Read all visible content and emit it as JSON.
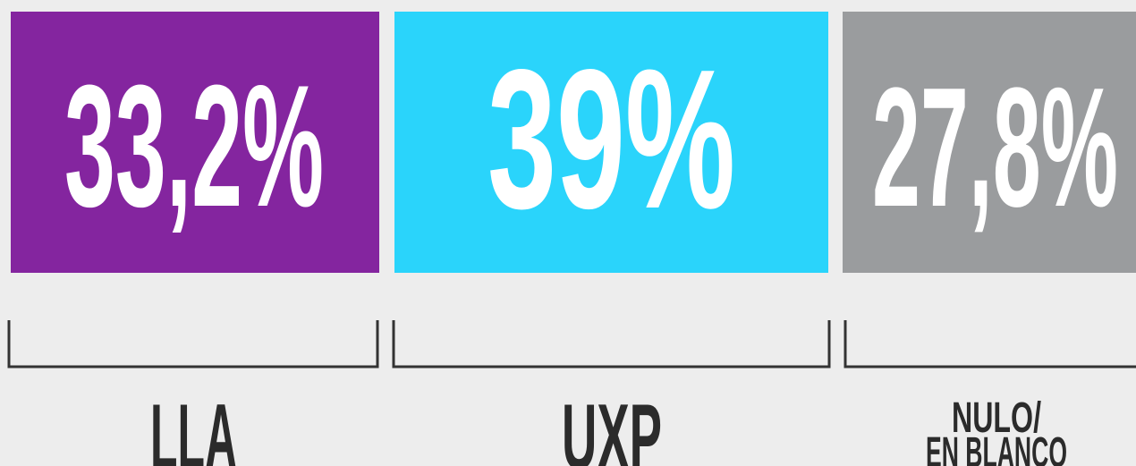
{
  "items": [
    {
      "value": "33,2%",
      "label_lines": [
        "LLA"
      ],
      "color": "#84259f"
    },
    {
      "value": "39%",
      "label_lines": [
        "UXP"
      ],
      "color": "#2ad4fb"
    },
    {
      "value": "27,8%",
      "label_lines": [
        "NULO/",
        "EN BLANCO"
      ],
      "color": "#9a9c9e"
    }
  ]
}
